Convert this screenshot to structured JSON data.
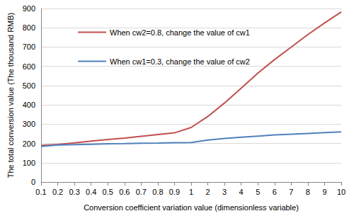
{
  "chart_data": {
    "type": "line",
    "x_label": "Conversion coefficient variation value (dimensionless variable)",
    "y_label": "The total conversion value (The thousand RMB)",
    "categories": [
      "0.1",
      "0.2",
      "0.3",
      "0.4",
      "0.5",
      "0.6",
      "0.7",
      "0.8",
      "0.9",
      "1",
      "2",
      "3",
      "4",
      "5",
      "6",
      "7",
      "8",
      "9",
      "10"
    ],
    "series": [
      {
        "name": "When cw2=0.8, change the value of cw1",
        "color": "#c0504d",
        "values": [
          190,
          195,
          203,
          212,
          220,
          228,
          237,
          246,
          255,
          283,
          340,
          410,
          487,
          565,
          635,
          700,
          765,
          825,
          882
        ]
      },
      {
        "name": "When cw1=0.3, change the value of cw2",
        "color": "#4f81bd",
        "values": [
          185,
          192,
          194,
          196,
          198,
          199,
          201,
          202,
          204,
          205,
          218,
          226,
          232,
          238,
          244,
          248,
          252,
          256,
          260
        ]
      }
    ],
    "ylim": [
      0,
      900
    ],
    "yticks": [
      0,
      100,
      200,
      300,
      400,
      500,
      600,
      700,
      800,
      900
    ],
    "grid": true,
    "legend": "upper left"
  }
}
